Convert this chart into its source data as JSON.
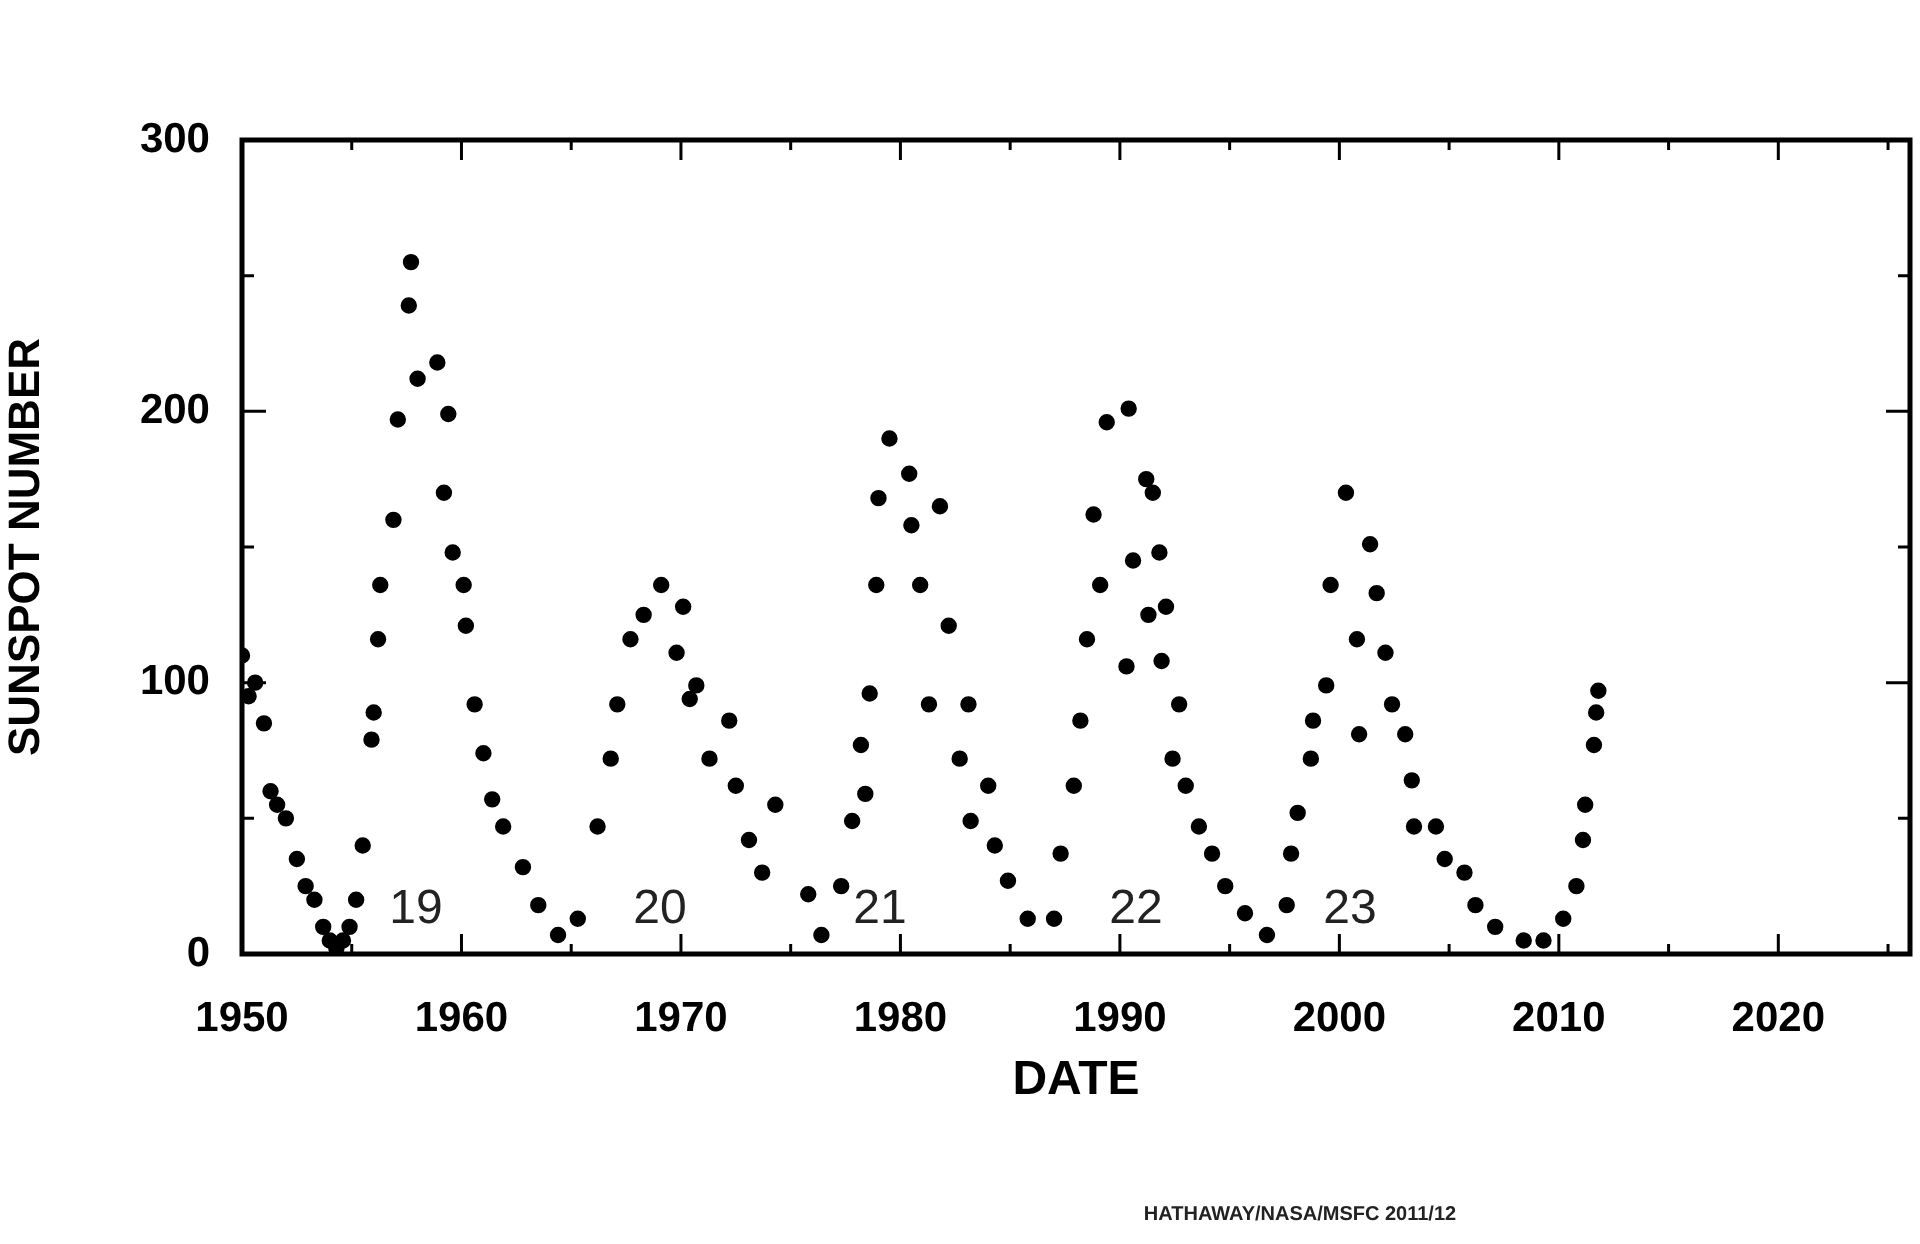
{
  "chart_data": {
    "type": "scatter",
    "xlabel": "DATE",
    "ylabel": "SUNSPOT NUMBER",
    "xlim": [
      1950,
      2026
    ],
    "xticks": [
      1950,
      {
        "value": 1955,
        "label": null
      },
      1960,
      {
        "value": 1965,
        "label": null
      },
      1970,
      {
        "value": 1975,
        "label": null
      },
      1980,
      {
        "value": 1985,
        "label": null
      },
      1990,
      {
        "value": 1995,
        "label": null
      },
      2000,
      {
        "value": 2005,
        "label": null
      },
      2010,
      {
        "value": 2015,
        "label": null
      },
      2020,
      {
        "value": 2025,
        "label": null
      }
    ],
    "ylim": [
      0,
      300
    ],
    "yticks": [
      0,
      {
        "value": 50,
        "label": null
      },
      100,
      {
        "value": 150,
        "label": null
      },
      200,
      {
        "value": 250,
        "label": null
      },
      300
    ],
    "legend": false,
    "marker": "circle",
    "annotations": [
      "19",
      "20",
      "21",
      "22",
      "23",
      "HATHAWAY/NASA/MSFC 2011/12"
    ],
    "series": [
      {
        "color": "#000000",
        "x": [
          1950.0,
          1950.3,
          1950.6,
          1951.0,
          1951.3,
          1951.6,
          1952.0,
          1952.5,
          1952.9,
          1953.3,
          1953.7,
          1954.0,
          1954.3,
          1954.6,
          1954.9,
          1955.2,
          1955.5,
          1955.9,
          1956.0,
          1956.2,
          1956.3,
          1956.9,
          1957.1,
          1957.6,
          1957.7,
          1958.0,
          1958.9,
          1959.4,
          1959.2,
          1959.6,
          1960.1,
          1960.2,
          1960.6,
          1961.0,
          1961.4,
          1961.9,
          1962.8,
          1963.5,
          1964.4,
          1965.3,
          1966.2,
          1966.8,
          1967.1,
          1967.7,
          1968.3,
          1969.1,
          1969.8,
          1970.7,
          1970.1,
          1970.4,
          1972.2,
          1971.3,
          1972.5,
          1974.3,
          1973.1,
          1973.7,
          1975.8,
          1976.4,
          1977.3,
          1977.8,
          1978.4,
          1978.2,
          1978.6,
          1978.9,
          1979.0,
          1979.5,
          1980.4,
          1980.5,
          1981.8,
          1980.9,
          1982.2,
          1981.3,
          1983.1,
          1982.7,
          1984.0,
          1983.2,
          1984.3,
          1984.9,
          1985.8,
          1987.0,
          1987.3,
          1987.9,
          1988.2,
          1988.5,
          1989.1,
          1988.8,
          1989.4,
          1990.4,
          1991.5,
          1990.6,
          1990.3,
          1992.1,
          1991.2,
          1991.8,
          1991.3,
          1991.9,
          1992.7,
          1992.4,
          1993.0,
          1993.6,
          1994.2,
          1994.8,
          1995.7,
          1996.7,
          1997.6,
          1997.8,
          1998.1,
          1998.7,
          1998.8,
          1999.4,
          1999.6,
          2000.3,
          2000.8,
          2000.9,
          2001.4,
          2001.7,
          2002.1,
          2002.4,
          2003.0,
          2003.3,
          2003.4,
          2004.4,
          2004.8,
          2005.7,
          2006.2,
          2007.1,
          2008.4,
          2009.3,
          2010.2,
          2010.8,
          2011.1,
          2011.2,
          2011.6,
          2011.7,
          2011.8
        ],
        "values": [
          110,
          95,
          100,
          85,
          60,
          55,
          50,
          35,
          25,
          20,
          10,
          5,
          2,
          5,
          10,
          20,
          40,
          79,
          89,
          116,
          136,
          160,
          197,
          239,
          255,
          212,
          218,
          199,
          170,
          148,
          136,
          121,
          92,
          74,
          57,
          47,
          32,
          18,
          7,
          13,
          47,
          72,
          92,
          116,
          125,
          136,
          111,
          99,
          128,
          94,
          86,
          72,
          62,
          55,
          42,
          30,
          22,
          7,
          25,
          49,
          59,
          77,
          96,
          136,
          168,
          190,
          177,
          158,
          165,
          136,
          121,
          92,
          92,
          72,
          62,
          49,
          40,
          27,
          13,
          13,
          37,
          62,
          86,
          116,
          136,
          162,
          196,
          201,
          170,
          145,
          106,
          128,
          175,
          148,
          125,
          108,
          92,
          72,
          62,
          47,
          37,
          25,
          15,
          7,
          18,
          37,
          52,
          72,
          86,
          99,
          136,
          170,
          116,
          81,
          151,
          133,
          111,
          92,
          81,
          64,
          47,
          47,
          35,
          30,
          18,
          10,
          5,
          5,
          13,
          25,
          42,
          55,
          77,
          89,
          97
        ]
      }
    ]
  }
}
